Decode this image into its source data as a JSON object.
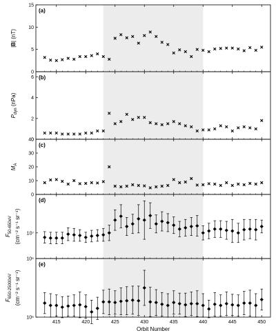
{
  "chart_data": {
    "type": "scatter",
    "xlabel": "Orbit Number",
    "xlim": [
      411.5,
      451.5
    ],
    "xticks": [
      415,
      420,
      425,
      430,
      435,
      440,
      445,
      450
    ],
    "shaded_range": [
      423,
      440
    ],
    "orbits": [
      413,
      414,
      415,
      416,
      417,
      418,
      419,
      420,
      421,
      422,
      423,
      424,
      425,
      426,
      427,
      428,
      429,
      430,
      431,
      432,
      433,
      434,
      435,
      436,
      437,
      438,
      439,
      440,
      441,
      442,
      443,
      444,
      445,
      446,
      447,
      448,
      449,
      450
    ],
    "panels": [
      {
        "panel_label": "(a)",
        "ylabel_parts": [
          "|",
          "B",
          "| (nT)"
        ],
        "ylim": [
          0,
          15
        ],
        "yticks": [
          "0",
          "5",
          "10",
          "15"
        ],
        "ytick_values": [
          0,
          5,
          10,
          15
        ],
        "marker": "x",
        "values": [
          3.2,
          2.6,
          2.5,
          2.7,
          3.0,
          2.8,
          3.4,
          3.4,
          3.6,
          4.0,
          3.4,
          2.8,
          7.5,
          8.3,
          7.6,
          7.9,
          6.4,
          8.1,
          8.9,
          7.9,
          6.6,
          6.1,
          4.2,
          4.9,
          4.5,
          3.4,
          5.0,
          4.8,
          4.5,
          5.1,
          5.2,
          5.3,
          5.3,
          5.1,
          4.7,
          5.4,
          4.8,
          5.5
        ]
      },
      {
        "panel_label": "(b)",
        "ylabel_parts": [
          "P",
          "dyn",
          " (nPa)"
        ],
        "ylim": [
          0,
          6.5
        ],
        "yticks": [
          "0",
          "2",
          "4",
          "6"
        ],
        "ytick_values": [
          0,
          2,
          4,
          6
        ],
        "marker": "x",
        "values": [
          0.6,
          0.6,
          0.6,
          0.5,
          0.5,
          0.5,
          0.5,
          0.6,
          0.6,
          0.8,
          0.8,
          2.5,
          1.5,
          1.7,
          2.4,
          1.9,
          2.1,
          2.1,
          1.6,
          1.5,
          1.4,
          1.5,
          1.7,
          1.5,
          1.3,
          1.2,
          0.8,
          0.9,
          0.9,
          1.0,
          1.3,
          1.2,
          0.8,
          1.1,
          1.2,
          1.1,
          1.0,
          1.8
        ]
      },
      {
        "panel_label": "(c)",
        "ylabel_parts": [
          "M",
          "A",
          ""
        ],
        "ylim": [
          0,
          40
        ],
        "yticks": [
          "0",
          "10",
          "20",
          "30",
          "40"
        ],
        "ytick_values": [
          0,
          10,
          20,
          30,
          40
        ],
        "marker": "x",
        "values": [
          8.5,
          10.5,
          10.8,
          9.5,
          7.5,
          10.0,
          7.8,
          8.0,
          8.5,
          8.3,
          9.3,
          20.0,
          6.0,
          5.5,
          6.0,
          7.0,
          6.5,
          6.2,
          4.8,
          5.5,
          6.0,
          6.5,
          10.8,
          8.5,
          9.0,
          11.5,
          6.8,
          7.0,
          7.8,
          7.5,
          6.5,
          8.5,
          6.5,
          7.5,
          7.0,
          8.0,
          7.5,
          8.5
        ]
      },
      {
        "panel_label": "(d)",
        "ylabel_parts": [
          "F",
          "50-650eV",
          "(cm⁻² s⁻¹ sr⁻¹)"
        ],
        "ylim": [
          0,
          1
        ],
        "yticks": [
          "10⁷",
          "10⁶"
        ],
        "ytick_values": [
          0.4,
          0.0
        ],
        "marker": "diamond",
        "values": [
          0.33,
          0.32,
          0.32,
          0.32,
          0.38,
          0.37,
          0.36,
          0.33,
          0.35,
          0.36,
          0.37,
          0.4,
          0.6,
          0.66,
          0.5,
          0.54,
          0.62,
          0.6,
          0.67,
          0.54,
          0.58,
          0.56,
          0.52,
          0.46,
          0.48,
          0.5,
          0.51,
          0.4,
          0.43,
          0.46,
          0.46,
          0.44,
          0.43,
          0.4,
          0.45,
          0.46,
          0.45,
          0.5
        ],
        "errors": [
          0.09,
          0.09,
          0.09,
          0.09,
          0.1,
          0.1,
          0.09,
          0.08,
          0.09,
          0.09,
          0.1,
          0.12,
          0.16,
          0.18,
          0.14,
          0.15,
          0.22,
          0.3,
          0.2,
          0.14,
          0.15,
          0.14,
          0.13,
          0.12,
          0.13,
          0.14,
          0.16,
          0.11,
          0.12,
          0.13,
          0.13,
          0.14,
          0.18,
          0.15,
          0.16,
          0.15,
          0.16,
          0.1
        ]
      },
      {
        "panel_label": "(e)",
        "ylabel_parts": [
          "F",
          "650-25000eV",
          "(cm⁻² s⁻¹ sr⁻¹)"
        ],
        "ylim": [
          0,
          1
        ],
        "yticks": [
          "10⁶"
        ],
        "ytick_values": [
          0.0
        ],
        "marker": "diamond",
        "values": [
          0.24,
          0.2,
          0.2,
          0.17,
          0.19,
          0.2,
          0.21,
          0.18,
          0.09,
          0.15,
          0.26,
          0.26,
          0.25,
          0.27,
          0.28,
          0.29,
          0.28,
          0.5,
          0.26,
          0.25,
          0.22,
          0.2,
          0.25,
          0.23,
          0.21,
          0.23,
          0.23,
          0.2,
          0.14,
          0.22,
          0.2,
          0.23,
          0.21,
          0.2,
          0.24,
          0.24,
          0.2,
          0.3
        ],
        "errors": [
          0.18,
          0.2,
          0.18,
          0.18,
          0.17,
          0.18,
          0.22,
          0.2,
          0.2,
          0.19,
          0.2,
          0.22,
          0.2,
          0.23,
          0.24,
          0.24,
          0.25,
          0.3,
          0.25,
          0.22,
          0.2,
          0.2,
          0.2,
          0.18,
          0.2,
          0.2,
          0.22,
          0.2,
          0.15,
          0.2,
          0.18,
          0.2,
          0.18,
          0.18,
          0.2,
          0.22,
          0.2,
          0.18
        ]
      }
    ]
  }
}
